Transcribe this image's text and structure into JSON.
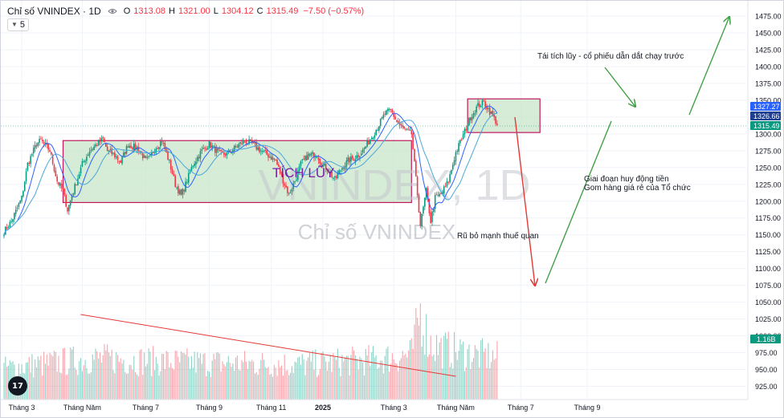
{
  "legend": {
    "title": "Chỉ số VNINDEX · 1D",
    "o_key": "O",
    "o_val": "1313.08",
    "h_key": "H",
    "h_val": "1321.00",
    "l_key": "L",
    "l_val": "1304.12",
    "c_key": "C",
    "c_val": "1315.49",
    "change": "−7.50 (−0.57%)",
    "indicator_count": "5"
  },
  "watermark": {
    "big": "VNINDEX, 1D",
    "sub": "Chỉ số VNINDEX"
  },
  "logo_text": "17",
  "annotations": {
    "accumulation": "TÍCH LŨY",
    "tariff": "Rũ bỏ mạnh thuế quan",
    "raise_capital_1": "Giai đoạn huy động tiền",
    "raise_capital_2": "Gom hàng giá rẻ của Tổ chức",
    "reaccumulation": "Tái tích lũy - cổ phiếu dẫn dắt chạy trước"
  },
  "price_tags": [
    {
      "value": "1327.27",
      "color": "#2962ff"
    },
    {
      "value": "1326.66",
      "color": "#1e3f8f"
    },
    {
      "value": "1315.49",
      "color": "#089981"
    }
  ],
  "volume_tag": {
    "value": "1.16B",
    "color": "#089981"
  },
  "colors": {
    "up": "#089981",
    "down": "#f23645",
    "box_fill": "#c8e6c9",
    "box_stroke": "#c2185b",
    "ma_fast": "#2962ff",
    "ma_slow": "#4aa8d8",
    "arrow_green": "#43a047",
    "arrow_red": "#e53935",
    "text_purple": "#7b1fa2"
  },
  "chart_data": {
    "type": "candlestick",
    "title": "Chỉ số VNINDEX · 1D",
    "y_axis": {
      "price_ticks": [
        925,
        950,
        975,
        1000,
        1025,
        1050,
        1075,
        1100,
        1125,
        1150,
        1175,
        1200,
        1225,
        1250,
        1275,
        1300,
        1325,
        1350,
        1375,
        1400,
        1425,
        1450,
        1475
      ],
      "price_labels": [
        "925.00",
        "950.00",
        "975.00",
        "1000.00",
        "1025.00",
        "1050.00",
        "1075.00",
        "1100.00",
        "1125.00",
        "1150.00",
        "1175.00",
        "1200.00",
        "1225.00",
        "1250.00",
        "1275.00",
        "1300.00",
        "1325.00",
        "1350.00",
        "1375.00",
        "1400.00",
        "1425.00",
        "1450.00",
        "1475.00"
      ]
    },
    "x_axis": {
      "labels": [
        "Tháng 3",
        "Tháng Năm",
        "Tháng 7",
        "Tháng 9",
        "Tháng 11",
        "2025",
        "Tháng 3",
        "Tháng Năm",
        "Tháng 7",
        "Tháng 9"
      ],
      "label_bars": [
        12,
        53,
        96,
        139,
        181,
        216,
        264,
        306,
        350,
        395
      ]
    },
    "price_path": [
      [
        0,
        1155
      ],
      [
        5,
        1170
      ],
      [
        12,
        1205
      ],
      [
        16,
        1255
      ],
      [
        22,
        1285
      ],
      [
        25,
        1290
      ],
      [
        31,
        1275
      ],
      [
        36,
        1230
      ],
      [
        40,
        1215
      ],
      [
        43,
        1187
      ],
      [
        47,
        1215
      ],
      [
        53,
        1255
      ],
      [
        58,
        1275
      ],
      [
        63,
        1285
      ],
      [
        67,
        1292
      ],
      [
        70,
        1275
      ],
      [
        74,
        1270
      ],
      [
        79,
        1258
      ],
      [
        84,
        1284
      ],
      [
        91,
        1278
      ],
      [
        96,
        1260
      ],
      [
        99,
        1265
      ],
      [
        102,
        1278
      ],
      [
        107,
        1290
      ],
      [
        112,
        1258
      ],
      [
        116,
        1225
      ],
      [
        120,
        1208
      ],
      [
        123,
        1225
      ],
      [
        128,
        1255
      ],
      [
        134,
        1275
      ],
      [
        139,
        1285
      ],
      [
        146,
        1270
      ],
      [
        151,
        1270
      ],
      [
        158,
        1282
      ],
      [
        163,
        1290
      ],
      [
        168,
        1285
      ],
      [
        174,
        1275
      ],
      [
        179,
        1268
      ],
      [
        184,
        1260
      ],
      [
        190,
        1225
      ],
      [
        193,
        1210
      ],
      [
        197,
        1230
      ],
      [
        201,
        1255
      ],
      [
        206,
        1268
      ],
      [
        212,
        1270
      ],
      [
        215,
        1255
      ],
      [
        219,
        1248
      ],
      [
        224,
        1232
      ],
      [
        229,
        1250
      ],
      [
        233,
        1260
      ],
      [
        238,
        1265
      ],
      [
        243,
        1275
      ],
      [
        248,
        1292
      ],
      [
        253,
        1310
      ],
      [
        258,
        1330
      ],
      [
        262,
        1335
      ],
      [
        266,
        1318
      ],
      [
        269,
        1310
      ],
      [
        272,
        1305
      ],
      [
        276,
        1300
      ],
      [
        282,
        1165
      ],
      [
        286,
        1215
      ],
      [
        289,
        1170
      ],
      [
        292,
        1205
      ],
      [
        296,
        1210
      ],
      [
        301,
        1230
      ],
      [
        306,
        1272
      ],
      [
        311,
        1298
      ],
      [
        316,
        1325
      ],
      [
        321,
        1342
      ],
      [
        325,
        1347
      ],
      [
        330,
        1330
      ],
      [
        334,
        1315
      ]
    ],
    "volume_envelope": [
      [
        0,
        52
      ],
      [
        60,
        68
      ],
      [
        120,
        62
      ],
      [
        200,
        58
      ],
      [
        250,
        66
      ],
      [
        276,
        75
      ],
      [
        282,
        145
      ],
      [
        288,
        95
      ],
      [
        296,
        85
      ],
      [
        320,
        74
      ],
      [
        334,
        70
      ]
    ],
    "volume_unit_note": "volume in millions of shares (approx)",
    "last_volume": "1.16B",
    "overlays": [
      {
        "type": "rectangle",
        "label": "TÍCH LŨY",
        "bar_from": 40,
        "bar_to": 276,
        "price_low": 1198,
        "price_high": 1290
      },
      {
        "type": "rectangle",
        "label": "Tái tích lũy",
        "bar_from": 314,
        "bar_to": 363,
        "price_low": 1302,
        "price_high": 1352
      }
    ],
    "moving_averages": [
      "fast",
      "slow"
    ]
  }
}
